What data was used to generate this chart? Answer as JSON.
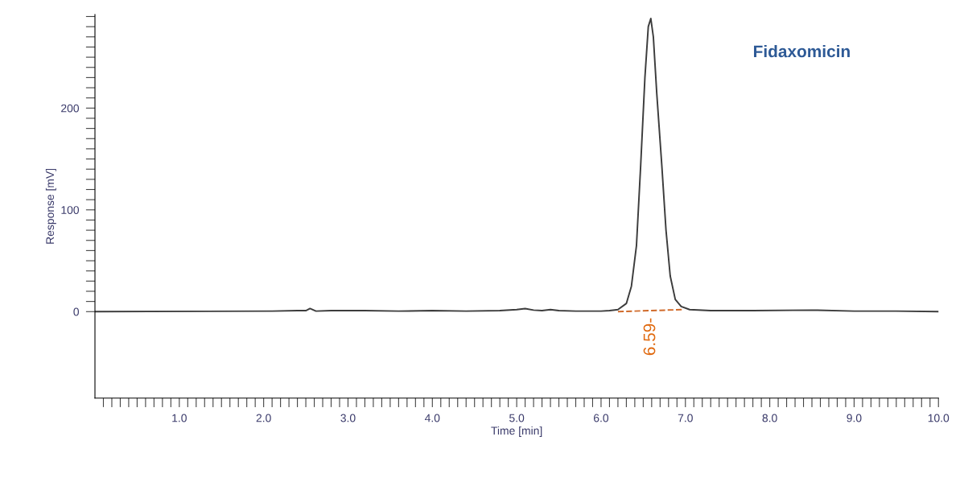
{
  "chart_data": {
    "type": "line",
    "xlabel": "Time [min]",
    "ylabel": "Response [mV]",
    "xlim": [
      0,
      10
    ],
    "ylim": [
      -85,
      292
    ],
    "xticks": [
      {
        "value": 0.1,
        "label": null
      },
      {
        "value": 0.2,
        "label": null
      },
      {
        "value": 0.3,
        "label": null
      },
      {
        "value": 0.4,
        "label": null
      },
      {
        "value": 0.5,
        "label": null
      },
      {
        "value": 0.6,
        "label": null
      },
      {
        "value": 0.7,
        "label": null
      },
      {
        "value": 0.8,
        "label": null
      },
      {
        "value": 0.9,
        "label": null
      },
      {
        "value": 1,
        "label": "1.0"
      },
      {
        "value": 1.1,
        "label": null
      },
      {
        "value": 1.2,
        "label": null
      },
      {
        "value": 1.3,
        "label": null
      },
      {
        "value": 1.4,
        "label": null
      },
      {
        "value": 1.5,
        "label": null
      },
      {
        "value": 1.6,
        "label": null
      },
      {
        "value": 1.7,
        "label": null
      },
      {
        "value": 1.8,
        "label": null
      },
      {
        "value": 1.9,
        "label": null
      },
      {
        "value": 2,
        "label": "2.0"
      },
      {
        "value": 2.1,
        "label": null
      },
      {
        "value": 2.2,
        "label": null
      },
      {
        "value": 2.3,
        "label": null
      },
      {
        "value": 2.4,
        "label": null
      },
      {
        "value": 2.5,
        "label": null
      },
      {
        "value": 2.6,
        "label": null
      },
      {
        "value": 2.7,
        "label": null
      },
      {
        "value": 2.8,
        "label": null
      },
      {
        "value": 2.9,
        "label": null
      },
      {
        "value": 3,
        "label": "3.0"
      },
      {
        "value": 3.1,
        "label": null
      },
      {
        "value": 3.2,
        "label": null
      },
      {
        "value": 3.3,
        "label": null
      },
      {
        "value": 3.4,
        "label": null
      },
      {
        "value": 3.5,
        "label": null
      },
      {
        "value": 3.6,
        "label": null
      },
      {
        "value": 3.7,
        "label": null
      },
      {
        "value": 3.8,
        "label": null
      },
      {
        "value": 3.9,
        "label": null
      },
      {
        "value": 4,
        "label": "4.0"
      },
      {
        "value": 4.1,
        "label": null
      },
      {
        "value": 4.2,
        "label": null
      },
      {
        "value": 4.3,
        "label": null
      },
      {
        "value": 4.4,
        "label": null
      },
      {
        "value": 4.5,
        "label": null
      },
      {
        "value": 4.6,
        "label": null
      },
      {
        "value": 4.7,
        "label": null
      },
      {
        "value": 4.8,
        "label": null
      },
      {
        "value": 4.9,
        "label": null
      },
      {
        "value": 5,
        "label": "5.0"
      },
      {
        "value": 5.1,
        "label": null
      },
      {
        "value": 5.2,
        "label": null
      },
      {
        "value": 5.3,
        "label": null
      },
      {
        "value": 5.4,
        "label": null
      },
      {
        "value": 5.5,
        "label": null
      },
      {
        "value": 5.6,
        "label": null
      },
      {
        "value": 5.7,
        "label": null
      },
      {
        "value": 5.8,
        "label": null
      },
      {
        "value": 5.9,
        "label": null
      },
      {
        "value": 6,
        "label": "6.0"
      },
      {
        "value": 6.1,
        "label": null
      },
      {
        "value": 6.2,
        "label": null
      },
      {
        "value": 6.3,
        "label": null
      },
      {
        "value": 6.4,
        "label": null
      },
      {
        "value": 6.5,
        "label": null
      },
      {
        "value": 6.6,
        "label": null
      },
      {
        "value": 6.7,
        "label": null
      },
      {
        "value": 6.8,
        "label": null
      },
      {
        "value": 6.9,
        "label": null
      },
      {
        "value": 7,
        "label": "7.0"
      },
      {
        "value": 7.1,
        "label": null
      },
      {
        "value": 7.2,
        "label": null
      },
      {
        "value": 7.3,
        "label": null
      },
      {
        "value": 7.4,
        "label": null
      },
      {
        "value": 7.5,
        "label": null
      },
      {
        "value": 7.6,
        "label": null
      },
      {
        "value": 7.7,
        "label": null
      },
      {
        "value": 7.8,
        "label": null
      },
      {
        "value": 7.9,
        "label": null
      },
      {
        "value": 8,
        "label": "8.0"
      },
      {
        "value": 8.1,
        "label": null
      },
      {
        "value": 8.2,
        "label": null
      },
      {
        "value": 8.3,
        "label": null
      },
      {
        "value": 8.4,
        "label": null
      },
      {
        "value": 8.5,
        "label": null
      },
      {
        "value": 8.6,
        "label": null
      },
      {
        "value": 8.7,
        "label": null
      },
      {
        "value": 8.8,
        "label": null
      },
      {
        "value": 8.9,
        "label": null
      },
      {
        "value": 9,
        "label": "9.0"
      },
      {
        "value": 9.1,
        "label": null
      },
      {
        "value": 9.2,
        "label": null
      },
      {
        "value": 9.3,
        "label": null
      },
      {
        "value": 9.4,
        "label": null
      },
      {
        "value": 9.5,
        "label": null
      },
      {
        "value": 9.6,
        "label": null
      },
      {
        "value": 9.7,
        "label": null
      },
      {
        "value": 9.8,
        "label": null
      },
      {
        "value": 9.9,
        "label": null
      },
      {
        "value": 10,
        "label": "10.0"
      }
    ],
    "yticks": [
      0,
      {
        "value": 10,
        "label": null
      },
      {
        "value": 20,
        "label": null
      },
      {
        "value": 30,
        "label": null
      },
      {
        "value": 40,
        "label": null
      },
      {
        "value": 50,
        "label": null
      },
      {
        "value": 60,
        "label": null
      },
      {
        "value": 70,
        "label": null
      },
      {
        "value": 80,
        "label": null
      },
      {
        "value": 90,
        "label": null
      },
      100,
      {
        "value": 110,
        "label": null
      },
      {
        "value": 120,
        "label": null
      },
      {
        "value": 130,
        "label": null
      },
      {
        "value": 140,
        "label": null
      },
      {
        "value": 150,
        "label": null
      },
      {
        "value": 160,
        "label": null
      },
      {
        "value": 170,
        "label": null
      },
      {
        "value": 180,
        "label": null
      },
      {
        "value": 190,
        "label": null
      },
      200,
      {
        "value": 210,
        "label": null
      },
      {
        "value": 220,
        "label": null
      },
      {
        "value": 230,
        "label": null
      },
      {
        "value": 240,
        "label": null
      },
      {
        "value": 250,
        "label": null
      },
      {
        "value": 260,
        "label": null
      },
      {
        "value": 270,
        "label": null
      },
      {
        "value": 280,
        "label": null
      },
      {
        "value": 290,
        "label": null
      }
    ],
    "grid": false,
    "legend": false,
    "series": [
      {
        "color": "#3c3c3c",
        "x": [
          0,
          2.1,
          2.4,
          2.5,
          2.55,
          2.62,
          2.8,
          3.2,
          3.6,
          4.0,
          4.4,
          4.8,
          5.0,
          5.1,
          5.2,
          5.3,
          5.4,
          5.5,
          5.7,
          6.0,
          6.1,
          6.2,
          6.3,
          6.36,
          6.42,
          6.47,
          6.52,
          6.56,
          6.59,
          6.62,
          6.66,
          6.72,
          6.77,
          6.82,
          6.88,
          6.95,
          7.05,
          7.3,
          7.8,
          8.5,
          9.0,
          9.5,
          10.0
        ],
        "values": [
          0,
          0.5,
          1,
          1,
          3,
          0.5,
          1,
          1,
          0.5,
          1,
          0.5,
          1,
          2,
          3,
          1.5,
          1,
          2,
          1,
          0.5,
          0.5,
          1,
          2,
          8,
          25,
          65,
          144,
          230,
          280,
          288,
          270,
          215,
          144,
          80,
          35,
          12,
          5,
          2,
          1,
          1,
          1.5,
          0.5,
          0.5,
          0
        ]
      },
      {
        "color": "#d06a2a",
        "line_style": "dashed",
        "x": [
          6.2,
          6.97
        ],
        "values": [
          0,
          2
        ]
      }
    ],
    "annotations": [
      "Fidaxomicin",
      "6.59-"
    ]
  }
}
